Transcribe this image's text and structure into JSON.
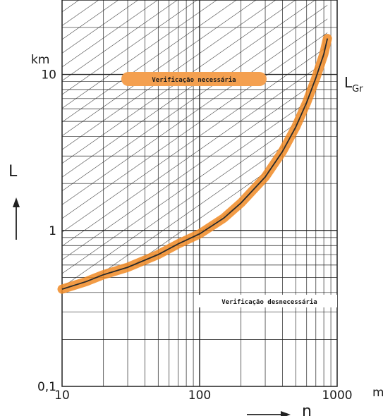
{
  "chart_data": {
    "type": "line",
    "title": "",
    "xlabel": "n",
    "ylabel": "L",
    "x_unit": "m",
    "y_unit": "km",
    "x_scale": "log",
    "y_scale": "log",
    "xlim": [
      10,
      1000
    ],
    "ylim": [
      0.1,
      30
    ],
    "x_ticks": [
      "10",
      "100",
      "1000"
    ],
    "y_ticks": [
      "0,1",
      "1",
      "10"
    ],
    "grid": true,
    "series": [
      {
        "name": "LGr",
        "color": "#f08a24",
        "x": [
          10,
          15,
          20,
          30,
          50,
          70,
          100,
          150,
          200,
          300,
          400,
          500,
          600,
          700,
          800,
          850
        ],
        "y": [
          0.42,
          0.47,
          0.52,
          0.58,
          0.7,
          0.82,
          0.95,
          1.2,
          1.5,
          2.2,
          3.2,
          4.6,
          6.6,
          9.5,
          13.5,
          17
        ]
      }
    ],
    "regions": [
      {
        "label": "Verificação necessária",
        "position": "above-curve",
        "hatched": true
      },
      {
        "label": "Verificação desnecessária",
        "position": "below-curve",
        "hatched": false
      }
    ],
    "annotations": [
      {
        "text": "L",
        "subscript": "Gr"
      }
    ]
  }
}
